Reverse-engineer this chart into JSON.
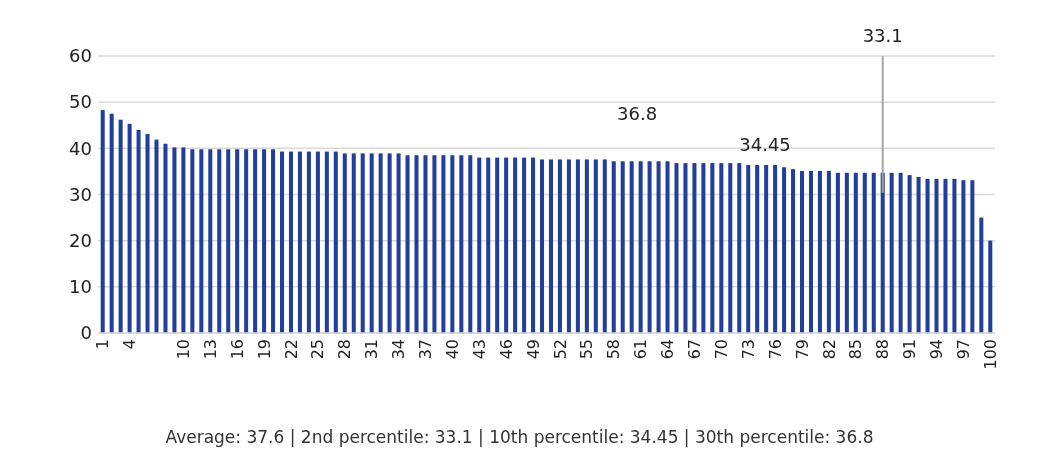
{
  "chart_data": {
    "type": "bar",
    "categories": [
      "1",
      null,
      null,
      "4",
      null,
      null,
      null,
      null,
      null,
      "10",
      null,
      null,
      "13",
      null,
      null,
      "16",
      null,
      null,
      "19",
      null,
      null,
      "22",
      null,
      null,
      "25",
      null,
      null,
      "28",
      null,
      null,
      "31",
      null,
      null,
      "34",
      null,
      null,
      "37",
      null,
      null,
      "40",
      null,
      null,
      "43",
      null,
      null,
      "46",
      null,
      null,
      "49",
      null,
      null,
      "52",
      null,
      null,
      "55",
      null,
      null,
      "58",
      null,
      null,
      "61",
      null,
      null,
      "64",
      null,
      null,
      "67",
      null,
      null,
      "70",
      null,
      null,
      "73",
      null,
      null,
      "76",
      null,
      null,
      "79",
      null,
      null,
      "82",
      null,
      null,
      "85",
      null,
      null,
      "88",
      null,
      null,
      "91",
      null,
      null,
      "94",
      null,
      null,
      "97",
      null,
      null,
      "100"
    ],
    "values": [
      48.3,
      47.5,
      46.2,
      45.3,
      44.0,
      43.1,
      41.9,
      41.0,
      40.2,
      40.2,
      39.8,
      39.8,
      39.8,
      39.8,
      39.8,
      39.8,
      39.8,
      39.8,
      39.8,
      39.8,
      39.3,
      39.3,
      39.3,
      39.3,
      39.3,
      39.3,
      39.3,
      38.9,
      38.9,
      38.9,
      38.9,
      38.9,
      38.9,
      38.9,
      38.5,
      38.5,
      38.5,
      38.5,
      38.5,
      38.5,
      38.5,
      38.5,
      38.0,
      38.0,
      38.0,
      38.0,
      38.0,
      38.0,
      38.0,
      37.6,
      37.6,
      37.6,
      37.6,
      37.6,
      37.6,
      37.6,
      37.6,
      37.2,
      37.2,
      37.2,
      37.2,
      37.2,
      37.2,
      37.2,
      36.8,
      36.8,
      36.8,
      36.8,
      36.8,
      36.8,
      36.8,
      36.8,
      36.4,
      36.4,
      36.4,
      36.4,
      35.9,
      35.5,
      35.1,
      35.1,
      35.1,
      35.1,
      34.7,
      34.7,
      34.7,
      34.7,
      34.7,
      34.7,
      34.7,
      34.7,
      34.2,
      33.8,
      33.4,
      33.4,
      33.4,
      33.4,
      33.1,
      33.1,
      25.0,
      20.0
    ],
    "color": "#213f99",
    "ylim": [
      0,
      60
    ],
    "yticks": [
      0,
      10,
      20,
      30,
      40,
      50,
      60
    ],
    "grid": "y",
    "ref_lines": [
      {
        "axis": "x",
        "value": "88",
        "label": "33.1",
        "color": "#a6a6a6"
      }
    ],
    "annotations": [
      "36.8",
      "34.45",
      "Average: 37.6  |  2nd percentile: 33.1  |  10th percentile: 34.45  |  30th percentile: 36.8"
    ]
  }
}
